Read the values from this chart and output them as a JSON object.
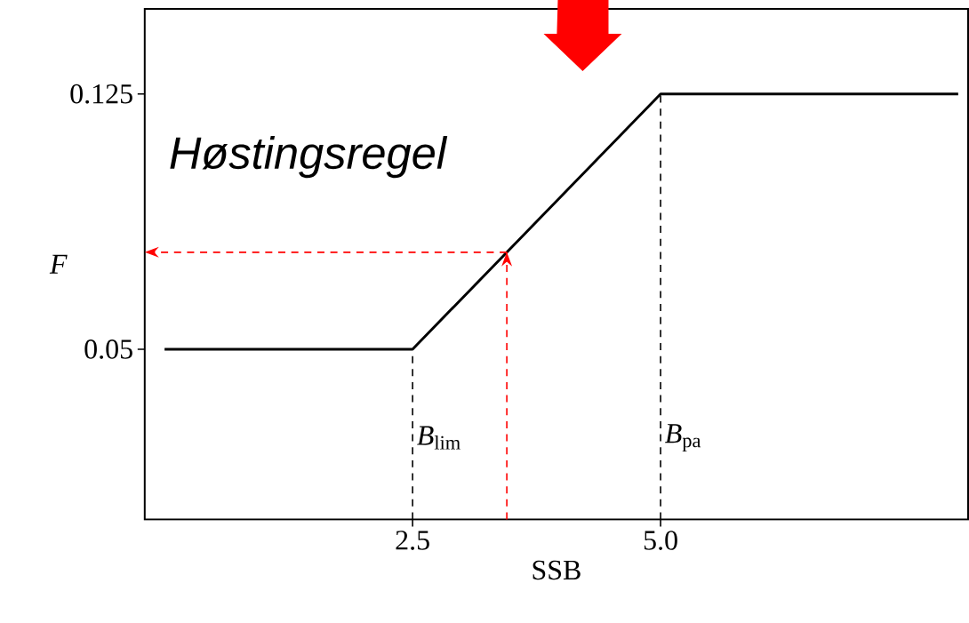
{
  "chart_data": {
    "type": "line",
    "xlabel": "SSB",
    "ylabel": "F",
    "annotations": [
      "Høstingsregel"
    ],
    "xlim": [
      -0.2,
      8.1
    ],
    "ylim": [
      0,
      0.15
    ],
    "xticks": [
      2.5,
      {
        "value": 5,
        "label": "5.0"
      }
    ],
    "yticks": [
      0.05,
      0.125
    ],
    "series": [
      {
        "color": "#000000",
        "x": [
          0,
          2.5,
          5,
          8
        ],
        "values": [
          0.05,
          0.05,
          0.125,
          0.125
        ]
      },
      {
        "color": "#ff0000",
        "line_style": "dashed",
        "x": [
          3.45,
          3.45
        ],
        "values": [
          0,
          0.0785
        ]
      },
      {
        "color": "#ff0000",
        "line_style": "dashed",
        "x": [
          3.45,
          -0.2
        ],
        "values": [
          0.0785,
          0.0785
        ]
      }
    ],
    "ref_lines": [
      {
        "axis": "x",
        "value": 2.5,
        "label": "*B*$_{lim}$",
        "color": "#000000",
        "line_style": "dashed"
      },
      {
        "axis": "x",
        "value": 5,
        "label": "*B*$_{pa}$",
        "color": "#000000",
        "line_style": "dashed"
      }
    ]
  }
}
